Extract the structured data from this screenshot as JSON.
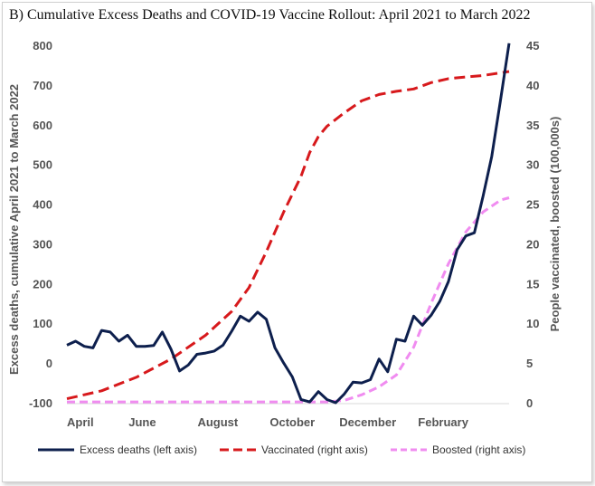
{
  "title": "B)  Cumulative Excess Deaths and COVID-19 Vaccine Rollout: April 2021 to March 2022",
  "colors": {
    "excess": "#0d1f4d",
    "vaccinated": "#d7191c",
    "boosted": "#f08cf0",
    "tick_text": "#555555"
  },
  "chart_data": {
    "type": "line",
    "title": "B)  Cumulative Excess Deaths and COVID-19 Vaccine Rollout: April 2021 to March 2022",
    "ylabel": "Excess deaths, cumulative April 2021 to March 2022",
    "y2label": "People vaccinated, boosted (100,000s)",
    "xlabel": "",
    "ylim": [
      -100,
      800
    ],
    "y2lim": [
      0,
      45
    ],
    "yticks": [
      "-100",
      "0",
      "100",
      "200",
      "300",
      "400",
      "500",
      "600",
      "700",
      "800"
    ],
    "y2ticks": [
      "0",
      "5",
      "10",
      "15",
      "20",
      "25",
      "30",
      "35",
      "40",
      "45"
    ],
    "x_tick_labels": [
      "April",
      "June",
      "August",
      "October",
      "December",
      "February"
    ],
    "x_tick_weeks": [
      0,
      8.7,
      17.4,
      26,
      34.7,
      43.4
    ],
    "x_range_weeks": [
      0,
      51
    ],
    "legend_position": "bottom",
    "series": [
      {
        "name": "Excess deaths (left axis)",
        "axis": "left",
        "style": "solid",
        "x": [
          0,
          1,
          2,
          3,
          4,
          5,
          6,
          7,
          8,
          9,
          10,
          11,
          12,
          13,
          14,
          15,
          16,
          17,
          18,
          19,
          20,
          21,
          22,
          23,
          24,
          25,
          26,
          27,
          28,
          29,
          30,
          31,
          32,
          33,
          34,
          35,
          36,
          37,
          38,
          39,
          40,
          41,
          42,
          43,
          44,
          45,
          46,
          47,
          48,
          49,
          50,
          51
        ],
        "values": [
          45,
          55,
          42,
          38,
          82,
          78,
          55,
          70,
          42,
          42,
          44,
          78,
          35,
          -20,
          -5,
          22,
          25,
          30,
          45,
          80,
          118,
          105,
          128,
          110,
          38,
          0,
          -35,
          -92,
          -98,
          -72,
          -92,
          -100,
          -78,
          -48,
          -50,
          -42,
          10,
          -22,
          60,
          55,
          118,
          95,
          120,
          155,
          205,
          285,
          320,
          328,
          420,
          520,
          660,
          805
        ]
      },
      {
        "name": "Vaccinated (right axis)",
        "axis": "right",
        "style": "dashed",
        "x": [
          0,
          4,
          8,
          12,
          16,
          19,
          21,
          23,
          25,
          27,
          28,
          29,
          30,
          32,
          34,
          36,
          38,
          40,
          42,
          44,
          46,
          48,
          51
        ],
        "values": [
          0.5,
          1.5,
          3.2,
          5.5,
          8.5,
          11.5,
          14.5,
          19,
          24,
          28.5,
          31.5,
          33.5,
          34.8,
          36.5,
          38,
          38.8,
          39.2,
          39.5,
          40.3,
          40.8,
          41,
          41.2,
          41.7
        ]
      },
      {
        "name": "Boosted (right axis)",
        "axis": "right",
        "style": "dashed",
        "x": [
          0,
          10,
          20,
          30,
          32,
          34,
          36,
          38,
          40,
          42,
          44,
          46,
          48,
          50,
          51
        ],
        "values": [
          0.1,
          0.1,
          0.1,
          0.1,
          0.3,
          1,
          2,
          3.5,
          7,
          12.5,
          17.5,
          21.5,
          24,
          25.5,
          25.8
        ]
      }
    ]
  }
}
